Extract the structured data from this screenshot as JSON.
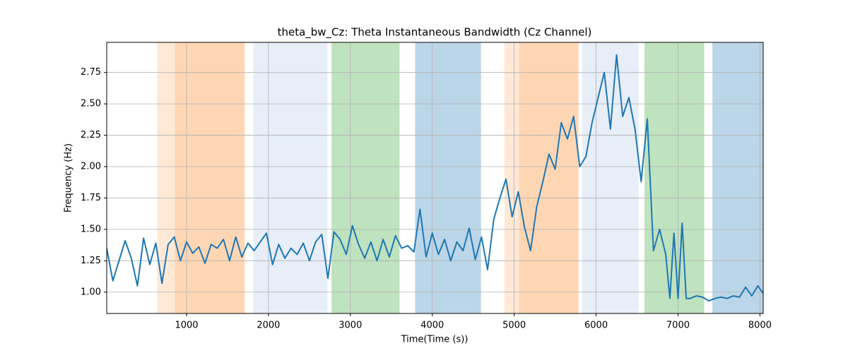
{
  "chart_data": {
    "type": "line",
    "title": "theta_bw_Cz: Theta Instantaneous Bandwidth (Cz Channel)",
    "xlabel": "Time(Time (s))",
    "ylabel": "Frequency (Hz)",
    "color": "#1f77b4",
    "grid": true,
    "xlim": [
      25,
      8040
    ],
    "ylim": [
      0.83,
      2.99
    ],
    "xticks": [
      1000,
      2000,
      3000,
      4000,
      5000,
      6000,
      7000,
      8000
    ],
    "yticks": [
      {
        "value": 1,
        "label": "1.00"
      },
      {
        "value": 1.25,
        "label": "1.25"
      },
      {
        "value": 1.5,
        "label": "1.50"
      },
      {
        "value": 1.75,
        "label": "1.75"
      },
      {
        "value": 2,
        "label": "2.00"
      },
      {
        "value": 2.25,
        "label": "2.25"
      },
      {
        "value": 2.5,
        "label": "2.50"
      },
      {
        "value": 2.75,
        "label": "2.75"
      }
    ],
    "spans": [
      {
        "start": 640,
        "end": 1710,
        "color": "#ff7f0e",
        "alpha": 0.17
      },
      {
        "start": 855,
        "end": 1710,
        "color": "#ff7f0e",
        "alpha": 0.17
      },
      {
        "start": 1815,
        "end": 2720,
        "color": "#aec7e8",
        "alpha": 0.3
      },
      {
        "start": 2770,
        "end": 3600,
        "color": "#2ca02c",
        "alpha": 0.3
      },
      {
        "start": 3790,
        "end": 4595,
        "color": "#1f77b4",
        "alpha": 0.3
      },
      {
        "start": 4880,
        "end": 5785,
        "color": "#ff7f0e",
        "alpha": 0.17
      },
      {
        "start": 5060,
        "end": 5785,
        "color": "#ff7f0e",
        "alpha": 0.17
      },
      {
        "start": 5830,
        "end": 6520,
        "color": "#aec7e8",
        "alpha": 0.3
      },
      {
        "start": 6590,
        "end": 7320,
        "color": "#2ca02c",
        "alpha": 0.3
      },
      {
        "start": 7420,
        "end": 8040,
        "color": "#1f77b4",
        "alpha": 0.3
      }
    ],
    "x": [
      25,
      100,
      175,
      250,
      325,
      400,
      475,
      550,
      625,
      700,
      775,
      850,
      925,
      1000,
      1075,
      1150,
      1225,
      1300,
      1375,
      1450,
      1525,
      1600,
      1675,
      1750,
      1825,
      1900,
      1975,
      2050,
      2125,
      2200,
      2275,
      2350,
      2425,
      2500,
      2575,
      2650,
      2725,
      2800,
      2875,
      2950,
      3025,
      3100,
      3175,
      3250,
      3325,
      3400,
      3475,
      3550,
      3625,
      3700,
      3775,
      3850,
      3925,
      4000,
      4075,
      4150,
      4225,
      4300,
      4375,
      4450,
      4525,
      4600,
      4675,
      4750,
      4825,
      4900,
      4975,
      5050,
      5125,
      5200,
      5275,
      5350,
      5425,
      5500,
      5575,
      5650,
      5725,
      5800,
      5875,
      5950,
      6025,
      6100,
      6175,
      6250,
      6325,
      6400,
      6475,
      6550,
      6625,
      6700,
      6775,
      6850,
      6900,
      6950,
      7000,
      7050,
      7100,
      7150,
      7225,
      7300,
      7375,
      7450,
      7525,
      7600,
      7675,
      7750,
      7825,
      7900,
      7975,
      8040
    ],
    "values": [
      1.35,
      1.09,
      1.25,
      1.41,
      1.27,
      1.05,
      1.43,
      1.22,
      1.39,
      1.07,
      1.38,
      1.44,
      1.25,
      1.4,
      1.31,
      1.36,
      1.23,
      1.38,
      1.35,
      1.42,
      1.25,
      1.44,
      1.28,
      1.39,
      1.33,
      1.4,
      1.47,
      1.22,
      1.38,
      1.27,
      1.35,
      1.3,
      1.39,
      1.25,
      1.4,
      1.46,
      1.11,
      1.48,
      1.42,
      1.3,
      1.53,
      1.38,
      1.27,
      1.4,
      1.25,
      1.42,
      1.28,
      1.45,
      1.35,
      1.37,
      1.32,
      1.66,
      1.28,
      1.47,
      1.3,
      1.42,
      1.25,
      1.4,
      1.33,
      1.51,
      1.26,
      1.44,
      1.18,
      1.58,
      1.75,
      1.9,
      1.6,
      1.8,
      1.52,
      1.33,
      1.68,
      1.88,
      2.1,
      1.98,
      2.35,
      2.22,
      2.4,
      2.0,
      2.08,
      2.35,
      2.55,
      2.75,
      2.3,
      2.89,
      2.4,
      2.55,
      2.3,
      1.88,
      2.38,
      1.33,
      1.5,
      1.3,
      0.95,
      1.47,
      0.95,
      1.55,
      0.95,
      0.95,
      0.97,
      0.96,
      0.93,
      0.95,
      0.96,
      0.95,
      0.97,
      0.96,
      1.04,
      0.97,
      1.05,
      0.99
    ]
  }
}
